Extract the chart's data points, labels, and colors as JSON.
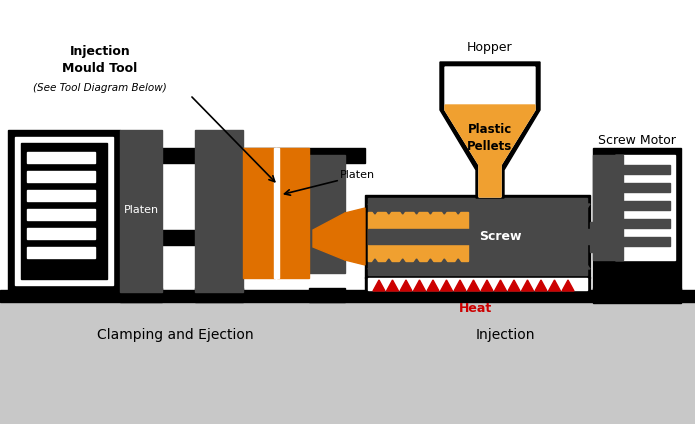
{
  "bg_color": "#ffffff",
  "floor_color": "#c8c8c8",
  "dark_gray": "#484848",
  "black": "#000000",
  "orange": "#e07000",
  "light_orange": "#f0a030",
  "red": "#cc0000",
  "white": "#ffffff",
  "label_injection_mould": "Injection\nMould Tool",
  "label_see_below": "(See Tool Diagram Below)",
  "label_platen_left": "Platen",
  "label_platen_right": "Platen",
  "label_hopper": "Hopper",
  "label_plastic_pellets": "Plastic\nPellets",
  "label_screw": "Screw",
  "label_screw_motor": "Screw Motor",
  "label_heat": "Heat",
  "label_clamping": "Clamping and Ejection",
  "label_injection": "Injection",
  "fig_w": 6.95,
  "fig_h": 4.24,
  "dpi": 100
}
